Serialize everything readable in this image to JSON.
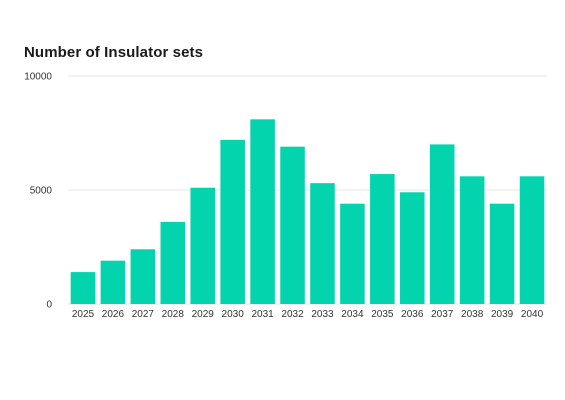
{
  "chart_data": {
    "type": "bar",
    "title": "Number of Insulator sets",
    "xlabel": "",
    "ylabel": "",
    "categories": [
      "2025",
      "2026",
      "2027",
      "2028",
      "2029",
      "2030",
      "2031",
      "2032",
      "2033",
      "2034",
      "2035",
      "2036",
      "2037",
      "2038",
      "2039",
      "2040"
    ],
    "values": [
      1400,
      1900,
      2400,
      3600,
      5100,
      7200,
      8100,
      6900,
      5300,
      4400,
      5700,
      4900,
      7000,
      5600,
      4400,
      5600
    ],
    "ylim": [
      0,
      10000
    ],
    "yticks": [
      "0",
      "5000",
      "10000"
    ],
    "grid": true,
    "legend": "none",
    "bar_color": "#04D4AD",
    "grid_color": "#E6E6E6"
  }
}
